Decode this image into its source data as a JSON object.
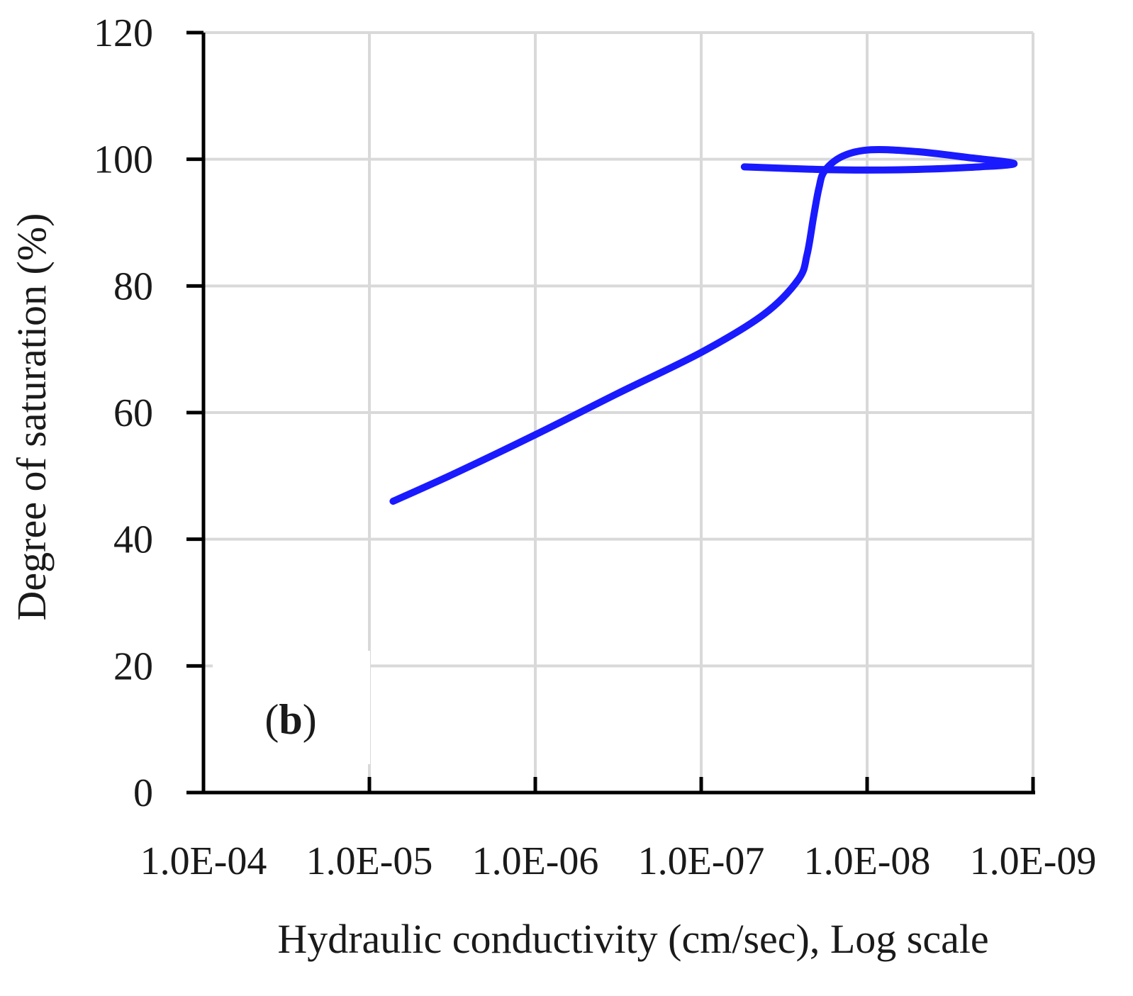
{
  "chart_data": {
    "type": "line",
    "xlabel": "Hydraulic conductivity (cm/sec), Log scale",
    "ylabel": "Degree of saturation (%)",
    "panel_label_bold": "b",
    "panel_label_open": "(",
    "panel_label_close": ")",
    "x_scale": "log",
    "x_reversed": true,
    "xlim": [
      0.0001,
      1e-09
    ],
    "x_ticks": [
      0.0001,
      1e-05,
      1e-06,
      1e-07,
      1e-08,
      1e-09
    ],
    "x_tick_labels": [
      "1.0E-04",
      "1.0E-05",
      "1.0E-06",
      "1.0E-07",
      "1.0E-08",
      "1.0E-09"
    ],
    "ylim": [
      0,
      120
    ],
    "y_ticks": [
      0,
      20,
      40,
      60,
      80,
      100,
      120
    ],
    "y_tick_labels": [
      "0",
      "20",
      "40",
      "60",
      "80",
      "100",
      "120"
    ],
    "grid": true,
    "series": [
      {
        "color": "#1a1aff",
        "points": [
          {
            "x": 7.2e-06,
            "y": 46
          },
          {
            "x": 3e-06,
            "y": 50.5
          },
          {
            "x": 1e-06,
            "y": 56.5
          },
          {
            "x": 3.2e-07,
            "y": 63
          },
          {
            "x": 1e-07,
            "y": 69.5
          },
          {
            "x": 4.2e-08,
            "y": 75.5
          },
          {
            "x": 2.6e-08,
            "y": 81
          },
          {
            "x": 2.3e-08,
            "y": 85
          },
          {
            "x": 2.1e-08,
            "y": 91
          },
          {
            "x": 1.95e-08,
            "y": 95.5
          },
          {
            "x": 1.8e-08,
            "y": 98.2
          },
          {
            "x": 1.4e-08,
            "y": 100.5
          },
          {
            "x": 9.5e-09,
            "y": 101.5
          },
          {
            "x": 5e-09,
            "y": 101.2
          },
          {
            "x": 2.5e-09,
            "y": 100.3
          },
          {
            "x": 1.3e-09,
            "y": 99.3
          },
          {
            "x": 2.5e-09,
            "y": 98.7
          },
          {
            "x": 5e-09,
            "y": 98.4
          },
          {
            "x": 1e-08,
            "y": 98.3
          },
          {
            "x": 2e-08,
            "y": 98.4
          },
          {
            "x": 5.5e-08,
            "y": 98.8
          }
        ]
      }
    ]
  }
}
